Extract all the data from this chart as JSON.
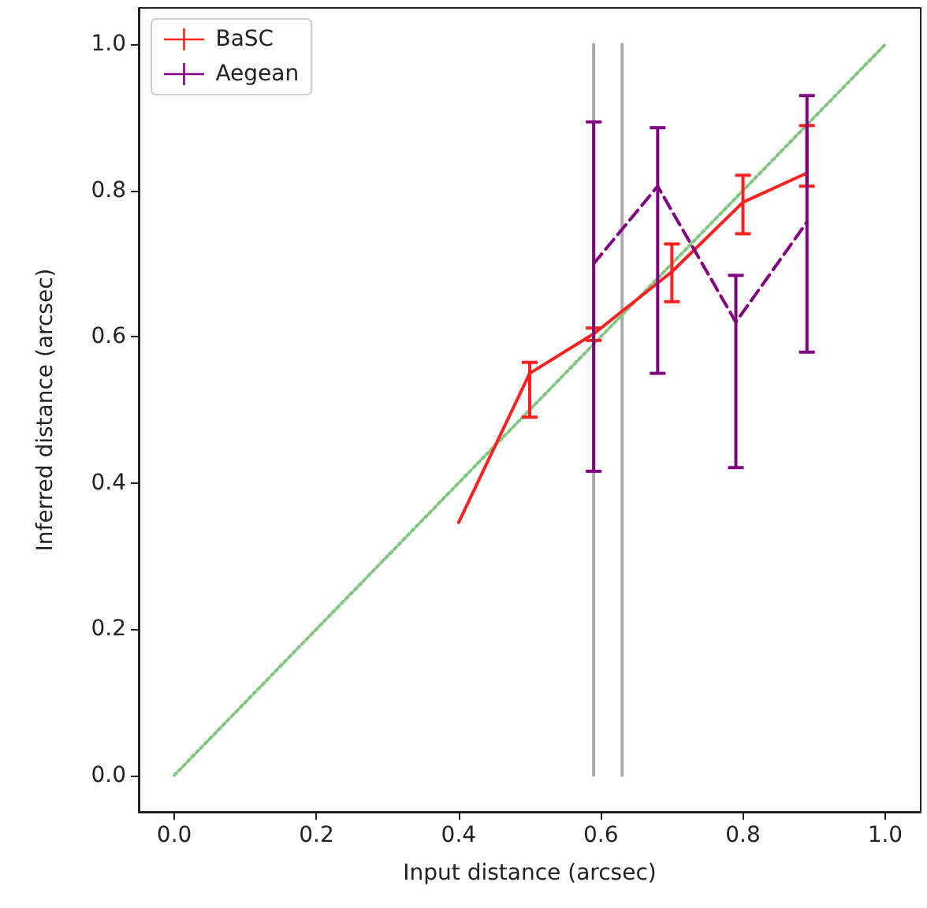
{
  "chart_data": {
    "type": "line",
    "xlabel": "Input distance (arcsec)",
    "ylabel": "Inferred distance (arcsec)",
    "xlim": [
      -0.05,
      1.05
    ],
    "xticks": [
      {
        "value": 0,
        "label": "0.0"
      },
      {
        "value": 0.2,
        "label": "0.2"
      },
      {
        "value": 0.4,
        "label": "0.4"
      },
      {
        "value": 0.6,
        "label": "0.6"
      },
      {
        "value": 0.8,
        "label": "0.8"
      },
      {
        "value": 1,
        "label": "1.0"
      }
    ],
    "ylim": [
      -0.05,
      1.05
    ],
    "yticks": [
      {
        "value": 0,
        "label": "0.0"
      },
      {
        "value": 0.2,
        "label": "0.2"
      },
      {
        "value": 0.4,
        "label": "0.4"
      },
      {
        "value": 0.6,
        "label": "0.6"
      },
      {
        "value": 0.8,
        "label": "0.8"
      },
      {
        "value": 1,
        "label": "1.0"
      }
    ],
    "grid": false,
    "legend": "top left",
    "marker": "none",
    "series": [
      {
        "color": "#aaaaaa",
        "x": [
          0.59,
          0.59
        ],
        "values": [
          0.0,
          1.0
        ],
        "line_style": "solid"
      },
      {
        "color": "#aaaaaa",
        "x": [
          0.63,
          0.63
        ],
        "values": [
          0.0,
          1.0
        ],
        "line_style": "solid"
      },
      {
        "color": "#80c680",
        "x": [
          0.0,
          1.0
        ],
        "values": [
          0.0,
          1.0
        ],
        "line_style": "dotted"
      },
      {
        "name": "BaSC",
        "color": "#ff2020",
        "x": [
          0.4,
          0.5,
          0.59,
          0.7,
          0.8,
          0.89
        ],
        "values": [
          0.346,
          0.55,
          0.604,
          0.689,
          0.784,
          0.824
        ],
        "errors": [
          null,
          [
            0.49,
            0.565
          ],
          [
            0.595,
            0.612
          ],
          [
            0.648,
            0.727
          ],
          [
            0.741,
            0.821
          ],
          [
            0.806,
            0.889
          ]
        ],
        "line_style": "solid"
      },
      {
        "name": "Aegean",
        "color": "#800080",
        "x": [
          0.59,
          0.68,
          0.79,
          0.89
        ],
        "values": [
          0.7,
          0.806,
          0.62,
          0.757
        ],
        "errors": [
          [
            0.416,
            0.894
          ],
          [
            0.55,
            0.886
          ],
          [
            0.421,
            0.684
          ],
          [
            0.579,
            0.93
          ]
        ],
        "line_style": "dashed"
      }
    ]
  }
}
